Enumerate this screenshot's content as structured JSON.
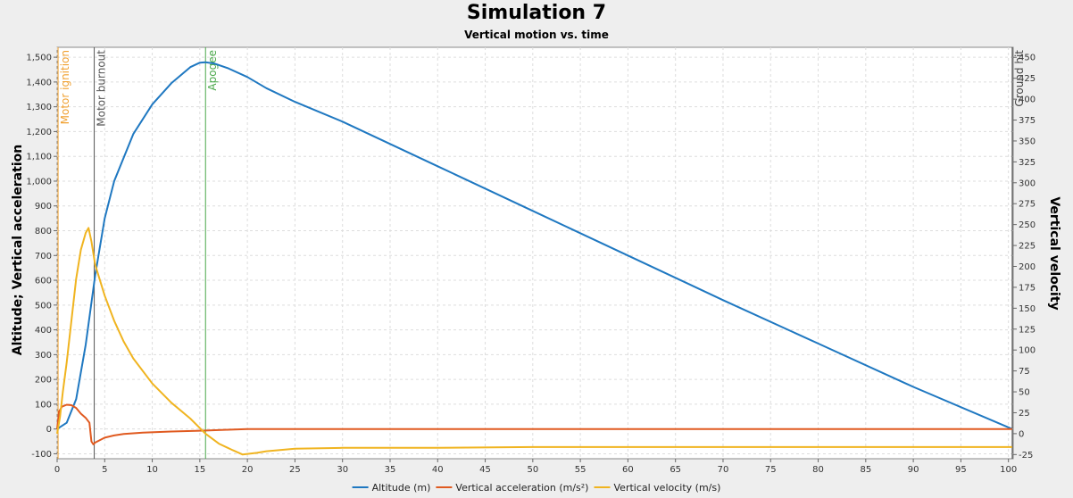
{
  "chart_data": {
    "type": "line",
    "title": "Simulation 7",
    "subtitle": "Vertical motion vs. time",
    "xlabel": "",
    "ylabel_left": "Altitude; Vertical acceleration",
    "ylabel_right": "Vertical velocity",
    "xlim": [
      0,
      100.5
    ],
    "ylim_left": [
      -120,
      1540
    ],
    "ylim_right": [
      -30,
      462
    ],
    "x_ticks": [
      0,
      5,
      10,
      15,
      20,
      25,
      30,
      35,
      40,
      45,
      50,
      55,
      60,
      65,
      70,
      75,
      80,
      85,
      90,
      95,
      100
    ],
    "y_left_ticks": [
      -100,
      0,
      100,
      200,
      300,
      400,
      500,
      600,
      700,
      800,
      900,
      1000,
      1100,
      1200,
      1300,
      1400,
      1500
    ],
    "y_left_tick_labels": [
      "-100",
      "0",
      "100",
      "200",
      "300",
      "400",
      "500",
      "600",
      "700",
      "800",
      "900",
      "1,000",
      "1,100",
      "1,200",
      "1,300",
      "1,400",
      "1,500"
    ],
    "y_right_ticks": [
      -25,
      0,
      25,
      50,
      75,
      100,
      125,
      150,
      175,
      200,
      225,
      250,
      275,
      300,
      325,
      350,
      375,
      400,
      425,
      450
    ],
    "grid": true,
    "legend_position": "bottom",
    "events": [
      {
        "label": "Motor ignition",
        "x": 0.1,
        "color": "#f0a030"
      },
      {
        "label": "Motor burnout",
        "x": 3.9,
        "color": "#555555"
      },
      {
        "label": "Apogee",
        "x": 15.6,
        "color": "#4aa84a"
      },
      {
        "label": "Ground hit",
        "x": 100.4,
        "color": "#444444"
      }
    ],
    "series": [
      {
        "name": "Altitude (m)",
        "axis": "left",
        "color": "#1f78c1",
        "x": [
          0,
          1,
          2,
          3,
          4,
          5,
          6,
          8,
          10,
          12,
          14,
          15,
          15.6,
          16.5,
          18,
          20,
          22,
          25,
          30,
          40,
          50,
          60,
          70,
          80,
          90,
          100.4
        ],
        "y": [
          0,
          25,
          120,
          340,
          620,
          850,
          1000,
          1190,
          1310,
          1395,
          1460,
          1478,
          1480,
          1475,
          1455,
          1420,
          1375,
          1320,
          1240,
          1060,
          880,
          700,
          520,
          345,
          170,
          0
        ]
      },
      {
        "name": "Vertical acceleration (m/s²)",
        "axis": "left",
        "color": "#e05a20",
        "x": [
          0,
          0.2,
          0.5,
          1,
          1.5,
          2,
          2.5,
          3,
          3.4,
          3.6,
          3.8,
          4,
          5,
          6,
          7,
          9,
          12,
          15,
          16,
          18,
          20,
          30,
          40,
          50,
          60,
          70,
          80,
          90,
          100.4
        ],
        "y": [
          0,
          70,
          90,
          98,
          96,
          85,
          62,
          45,
          25,
          -50,
          -62,
          -55,
          -35,
          -26,
          -20,
          -15,
          -10,
          -7,
          -6,
          -3,
          0,
          0,
          0,
          0,
          0,
          0,
          0,
          0,
          0
        ]
      },
      {
        "name": "Vertical velocity (m/s)",
        "axis": "right",
        "color": "#f0b420",
        "x": [
          0,
          0.3,
          0.6,
          1,
          1.5,
          2,
          2.5,
          3,
          3.3,
          3.6,
          4,
          5,
          6,
          7,
          8,
          10,
          12,
          14,
          15.6,
          17,
          18.5,
          19.5,
          21,
          22,
          25,
          30,
          40,
          50,
          60,
          70,
          80,
          90,
          100.4
        ],
        "y": [
          0,
          20,
          50,
          85,
          135,
          185,
          220,
          240,
          246,
          230,
          202,
          165,
          135,
          110,
          90,
          60,
          37,
          18,
          0,
          -12,
          -20,
          -25,
          -23,
          -21,
          -18,
          -17,
          -17,
          -16,
          -16,
          -16,
          -16,
          -16,
          -16
        ]
      }
    ]
  }
}
